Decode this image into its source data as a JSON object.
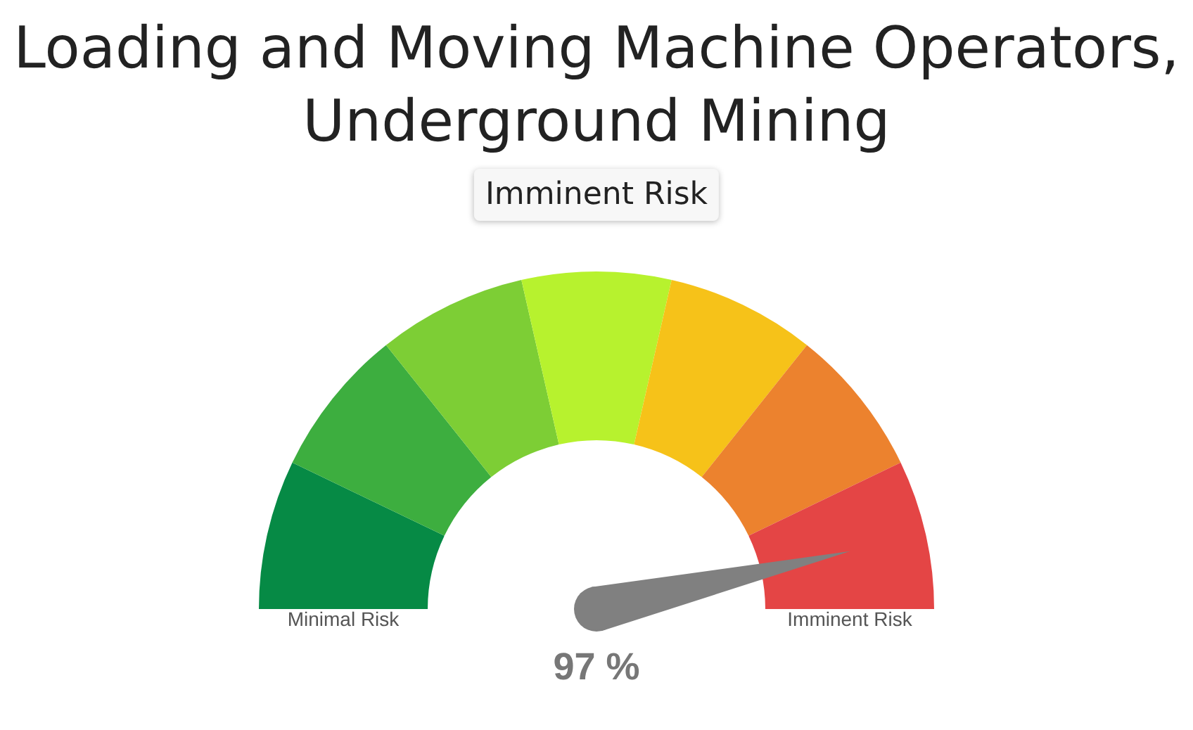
{
  "chart_data": {
    "type": "donut",
    "title": "Loading and Moving Machine Operators, Underground Mining",
    "subtitle": "Imminent Risk",
    "categories": [
      "Minimal Risk",
      null,
      null,
      null,
      null,
      null,
      "Imminent Risk"
    ],
    "values": [
      14.29,
      14.29,
      14.28,
      14.28,
      14.28,
      14.29,
      14.29
    ],
    "colors": [
      "#068a45",
      "#3dae3f",
      "#7dce35",
      "#b7f22e",
      "#f6c219",
      "#ec822e",
      "#e44545"
    ],
    "needle": "Imminent Risk",
    "annotations": [
      "97 %"
    ]
  }
}
